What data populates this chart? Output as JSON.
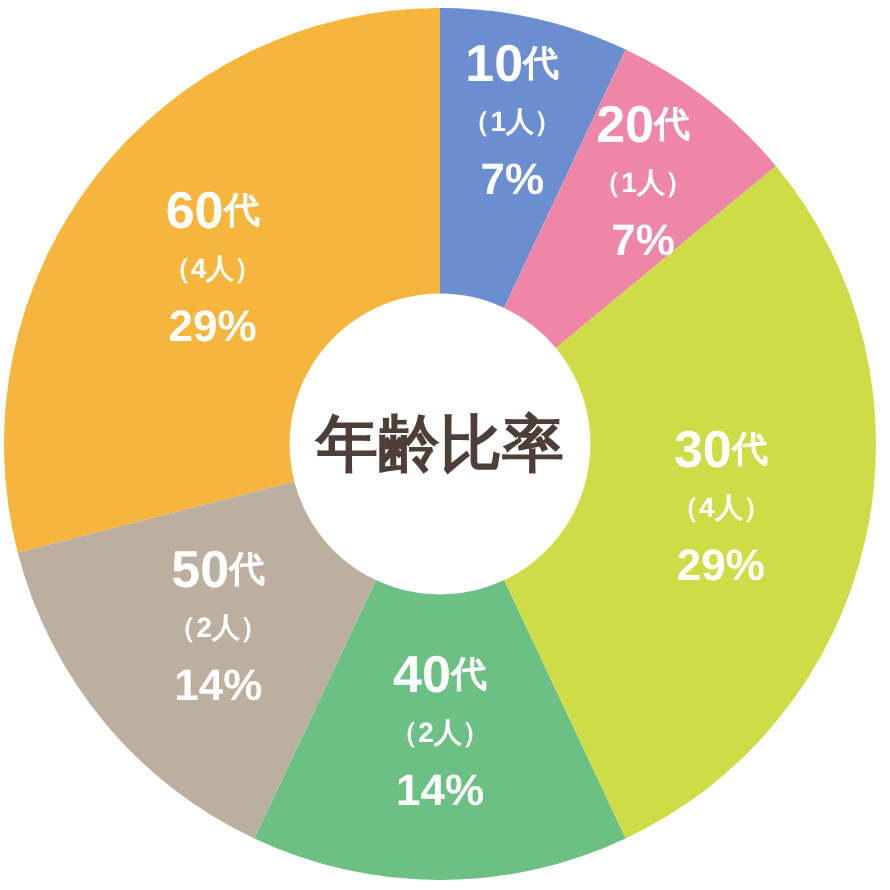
{
  "chart_data": {
    "type": "donut",
    "title": "年齢比率",
    "categories": [
      "10代",
      "20代",
      "30代",
      "40代",
      "50代",
      "60代"
    ],
    "values": [
      7,
      7,
      29,
      14,
      14,
      29
    ],
    "value_labels": [
      "（1人）\n7%",
      "（1人）\n7%",
      "（4人）\n29%",
      "（2人）\n14%",
      "（2人）\n14%",
      "（4人）\n29%"
    ],
    "colors": [
      "#6a8ecf",
      "#ee86a8",
      "#cedc48",
      "#6cc084",
      "#bcaf9f",
      "#f6b53d"
    ]
  }
}
